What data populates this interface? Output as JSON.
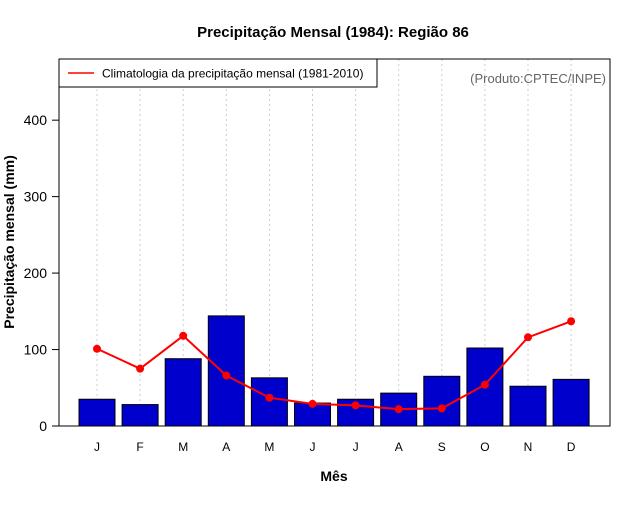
{
  "chart_data": {
    "type": "bar",
    "title": "Precipitação Mensal (1984): Região 86",
    "xlabel": "Mês",
    "ylabel": "Precipitação mensal (mm)",
    "watermark": "(Produto:CPTEC/INPE)",
    "categories": [
      "J",
      "F",
      "M",
      "A",
      "M",
      "J",
      "J",
      "A",
      "S",
      "O",
      "N",
      "D"
    ],
    "ylim": [
      0,
      480
    ],
    "yticks": [
      0,
      100,
      200,
      300,
      400
    ],
    "series": [
      {
        "name": "Precipitação mensal (1984)",
        "kind": "bar",
        "color": "#0000CD",
        "values": [
          35,
          28,
          88,
          144,
          63,
          30,
          35,
          43,
          65,
          102,
          52,
          61
        ]
      },
      {
        "name": "Climatologia da precipitação mensal (1981-2010)",
        "kind": "line",
        "color": "#FF0000",
        "values": [
          101,
          75,
          118,
          66,
          37,
          29,
          27,
          22,
          23,
          54,
          116,
          137
        ]
      }
    ],
    "legend": {
      "position": "top-left",
      "label": "Climatologia da precipitação mensal (1981-2010)"
    },
    "grid": "vertical dotted"
  }
}
